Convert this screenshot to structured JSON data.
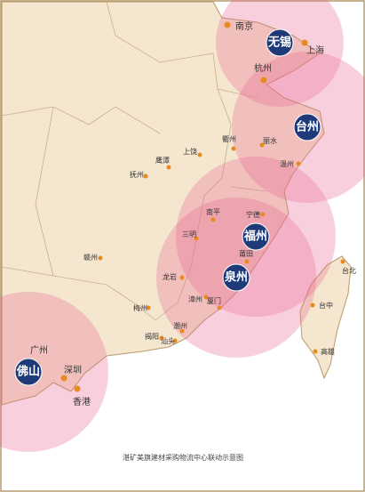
{
  "hubs": [
    "无锡",
    "台州",
    "福州",
    "泉州",
    "佛山"
  ],
  "cities": [
    "南京",
    "上海",
    "杭州",
    "衢州",
    "丽水",
    "温州",
    "上饶",
    "鹰潭",
    "抚州",
    "南平",
    "宁德",
    "三明",
    "莆田",
    "赣州",
    "龙岩",
    "漳州",
    "厦门",
    "梅州",
    "潮州",
    "揭阳",
    "汕头",
    "广州",
    "深圳",
    "香港",
    "台北",
    "台中",
    "高雄"
  ],
  "caption": "湛矿美旗建材采购物流中心联动示意图"
}
